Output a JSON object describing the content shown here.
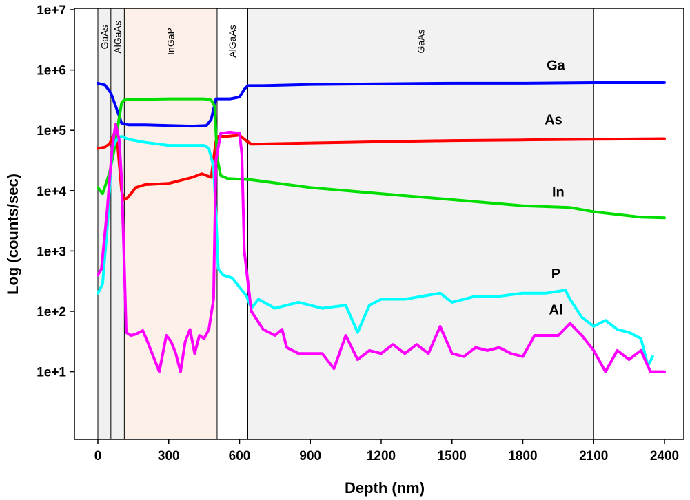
{
  "chart_data": {
    "type": "line",
    "xlabel": "Depth (nm)",
    "ylabel": "Log (counts/sec)",
    "xlim": [
      -20,
      2430
    ],
    "ylim": [
      1,
      7
    ],
    "y_scale": "log10",
    "x_ticks": [
      0,
      300,
      600,
      900,
      1200,
      1500,
      1800,
      2100,
      2400
    ],
    "x_tick_labels": [
      "0",
      "300",
      "600",
      "900",
      "1200",
      "1500",
      "1800",
      "2100",
      "2400"
    ],
    "y_ticks": [
      1,
      2,
      3,
      4,
      5,
      6,
      7
    ],
    "y_tick_labels": [
      "1e+1",
      "1e+2",
      "1e+3",
      "1e+4",
      "1e+5",
      "1e+6",
      "1e+7"
    ],
    "grid": false,
    "layers": [
      {
        "label": "GaAs",
        "x_start": 0,
        "x_end": 55,
        "shade": "#f0f0f0"
      },
      {
        "label": "AlGaAs",
        "x_start": 55,
        "x_end": 112,
        "shade": "#f0f0f0"
      },
      {
        "label": "InGaP",
        "x_start": 112,
        "x_end": 505,
        "shade": "#fdf0e8"
      },
      {
        "label": "AlGaAs",
        "x_start": 505,
        "x_end": 635,
        "shade": "#ffffff"
      },
      {
        "label": "GaAs",
        "x_start": 635,
        "x_end": 2100,
        "shade": "#f2f2f2"
      }
    ],
    "series": [
      {
        "name": "Ga",
        "color": "#0000ff",
        "x": [
          0,
          30,
          55,
          80,
          100,
          130,
          200,
          300,
          400,
          460,
          480,
          500,
          510,
          560,
          600,
          620,
          635,
          700,
          900,
          1200,
          1500,
          1800,
          2100,
          2400
        ],
        "y": [
          5.78,
          5.75,
          5.62,
          5.35,
          5.12,
          5.09,
          5.09,
          5.08,
          5.07,
          5.08,
          5.18,
          5.52,
          5.52,
          5.52,
          5.55,
          5.68,
          5.74,
          5.74,
          5.76,
          5.77,
          5.78,
          5.78,
          5.79,
          5.79
        ]
      },
      {
        "name": "As",
        "color": "#ff0000",
        "x": [
          0,
          30,
          50,
          70,
          85,
          95,
          100,
          110,
          125,
          140,
          160,
          200,
          300,
          400,
          440,
          480,
          500,
          510,
          550,
          600,
          620,
          650,
          900,
          1200,
          1500,
          1800,
          2100,
          2400
        ],
        "y": [
          4.7,
          4.72,
          4.78,
          4.95,
          4.7,
          4.25,
          4.0,
          3.85,
          3.88,
          3.95,
          4.05,
          4.1,
          4.12,
          4.22,
          4.28,
          4.22,
          4.82,
          4.9,
          4.9,
          4.92,
          4.85,
          4.77,
          4.79,
          4.81,
          4.83,
          4.84,
          4.85,
          4.86
        ]
      },
      {
        "name": "In",
        "color": "#00dd00",
        "x": [
          0,
          20,
          50,
          70,
          90,
          100,
          110,
          150,
          300,
          450,
          480,
          495,
          505,
          520,
          550,
          650,
          900,
          1200,
          1500,
          1800,
          2000,
          2100,
          2300,
          2400
        ],
        "y": [
          4.05,
          3.95,
          4.3,
          4.7,
          5.2,
          5.45,
          5.5,
          5.51,
          5.52,
          5.52,
          5.5,
          5.4,
          4.55,
          4.25,
          4.2,
          4.18,
          4.05,
          3.95,
          3.85,
          3.75,
          3.72,
          3.65,
          3.56,
          3.55
        ]
      },
      {
        "name": "P",
        "color": "#00ffff",
        "x": [
          0,
          20,
          40,
          60,
          80,
          100,
          130,
          200,
          300,
          450,
          470,
          490,
          500,
          510,
          530,
          570,
          600,
          630,
          650,
          680,
          750,
          850,
          950,
          1050,
          1100,
          1150,
          1200,
          1300,
          1450,
          1500,
          1600,
          1700,
          1800,
          1900,
          1980,
          2000,
          2050,
          2100,
          2150,
          2200,
          2250,
          2300,
          2330,
          2350
        ],
        "y": [
          2.3,
          2.45,
          3.4,
          4.7,
          4.85,
          4.9,
          4.85,
          4.8,
          4.75,
          4.75,
          4.7,
          4.4,
          3.6,
          2.7,
          2.6,
          2.55,
          2.4,
          2.25,
          2.05,
          2.2,
          2.05,
          2.15,
          2.05,
          2.1,
          1.65,
          2.1,
          2.2,
          2.2,
          2.3,
          2.15,
          2.25,
          2.25,
          2.3,
          2.3,
          2.35,
          2.2,
          1.9,
          1.75,
          1.85,
          1.7,
          1.65,
          1.55,
          1.1,
          1.25
        ]
      },
      {
        "name": "Al",
        "color": "#ff00ff",
        "x": [
          0,
          15,
          40,
          60,
          75,
          90,
          100,
          110,
          120,
          140,
          160,
          190,
          210,
          240,
          260,
          270,
          290,
          310,
          330,
          350,
          370,
          390,
          410,
          430,
          450,
          470,
          490,
          500,
          520,
          560,
          600,
          610,
          620,
          650,
          700,
          750,
          780,
          800,
          850,
          900,
          950,
          1000,
          1050,
          1100,
          1150,
          1200,
          1250,
          1300,
          1350,
          1400,
          1450,
          1500,
          1550,
          1600,
          1650,
          1700,
          1750,
          1800,
          1850,
          1900,
          1950,
          2000,
          2050,
          2100,
          2150,
          2200,
          2250,
          2300,
          2340,
          2360,
          2400
        ],
        "y": [
          2.6,
          2.7,
          3.7,
          4.7,
          5.1,
          4.85,
          4.2,
          3.0,
          1.65,
          1.6,
          1.62,
          1.68,
          1.5,
          1.2,
          1.0,
          1.2,
          1.6,
          1.5,
          1.3,
          1.0,
          1.5,
          1.7,
          1.3,
          1.6,
          1.55,
          1.7,
          2.2,
          4.5,
          4.95,
          4.97,
          4.95,
          4.6,
          3.0,
          2.0,
          1.7,
          1.6,
          1.7,
          1.4,
          1.3,
          1.3,
          1.3,
          1.05,
          1.6,
          1.2,
          1.35,
          1.3,
          1.45,
          1.3,
          1.45,
          1.3,
          1.75,
          1.3,
          1.25,
          1.4,
          1.35,
          1.4,
          1.3,
          1.25,
          1.6,
          1.6,
          1.6,
          1.8,
          1.6,
          1.35,
          1.0,
          1.35,
          1.2,
          1.35,
          1.0,
          1.0,
          1.0
        ]
      }
    ],
    "series_labels": [
      {
        "name": "Ga",
        "x": 1940,
        "y": 6.0
      },
      {
        "name": "As",
        "x": 1930,
        "y": 5.1
      },
      {
        "name": "In",
        "x": 1950,
        "y": 3.9
      },
      {
        "name": "P",
        "x": 1940,
        "y": 2.55
      },
      {
        "name": "Al",
        "x": 1940,
        "y": 1.95
      }
    ]
  }
}
